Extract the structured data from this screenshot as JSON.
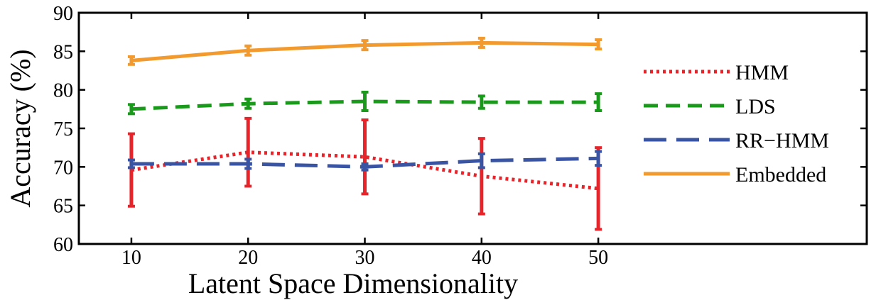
{
  "chart_data": {
    "type": "line",
    "xlabel": "Latent Space Dimensionality",
    "ylabel": "Accuracy (%)",
    "x": [
      10,
      20,
      30,
      40,
      50
    ],
    "xticks": [
      "10",
      "20",
      "30",
      "40",
      "50"
    ],
    "yticks": [
      "60",
      "65",
      "70",
      "75",
      "80",
      "85",
      "90"
    ],
    "xlim": [
      5.5,
      73
    ],
    "ylim": [
      60,
      90
    ],
    "grid": false,
    "legend_position": "right",
    "series": [
      {
        "name": "HMM",
        "color": "#e8242b",
        "style": "dotted",
        "values": [
          69.6,
          71.9,
          71.3,
          68.8,
          67.2
        ],
        "errors": [
          4.7,
          4.4,
          4.8,
          4.9,
          5.3
        ]
      },
      {
        "name": "LDS",
        "color": "#1a9a1a",
        "style": "dashed",
        "values": [
          77.5,
          78.2,
          78.5,
          78.4,
          78.4
        ],
        "errors": [
          0.6,
          0.6,
          1.2,
          0.8,
          1.1
        ]
      },
      {
        "name": "RR−HMM",
        "color": "#3a54a4",
        "style": "long-dashed",
        "values": [
          70.4,
          70.4,
          70.0,
          70.8,
          71.1
        ],
        "errors": [
          0.5,
          0.6,
          0.4,
          0.9,
          0.9
        ]
      },
      {
        "name": "Embedded",
        "color": "#f29a2e",
        "style": "solid",
        "values": [
          83.8,
          85.1,
          85.8,
          86.1,
          85.9
        ],
        "errors": [
          0.5,
          0.6,
          0.6,
          0.6,
          0.6
        ]
      }
    ]
  }
}
